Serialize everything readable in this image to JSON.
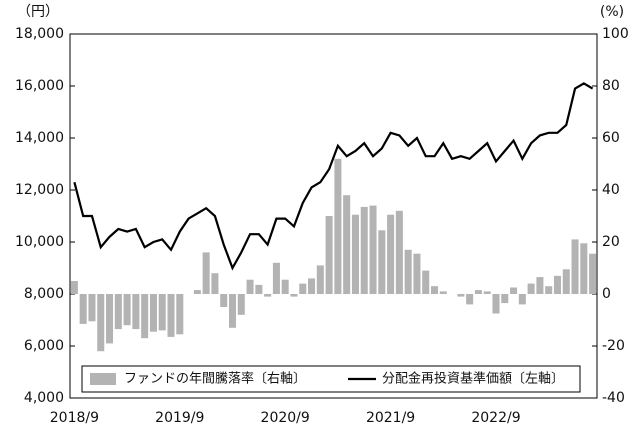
{
  "chart_data": {
    "type": "combo",
    "y_unit": "（円）",
    "y2_unit": "(%)",
    "categories": [
      "2018/9",
      null,
      null,
      null,
      null,
      null,
      null,
      null,
      null,
      null,
      null,
      null,
      "2019/9",
      null,
      null,
      null,
      null,
      null,
      null,
      null,
      null,
      null,
      null,
      null,
      "2020/9",
      null,
      null,
      null,
      null,
      null,
      null,
      null,
      null,
      null,
      null,
      null,
      "2021/9",
      null,
      null,
      null,
      null,
      null,
      null,
      null,
      null,
      null,
      null,
      null,
      "2022/9",
      null,
      null,
      null,
      null,
      null,
      null,
      null,
      null,
      null,
      null,
      null
    ],
    "series": [
      {
        "name": "ファンドの年間騰落率〔右軸〕",
        "type": "bar",
        "axis": "y2",
        "color": "#b3b3b3",
        "values": [
          5,
          -11.5,
          -10.5,
          -22,
          -19,
          -13.5,
          -12,
          -13.5,
          -17,
          -14.5,
          -14,
          -16.5,
          -15.5,
          0,
          1.5,
          16,
          8,
          -5,
          -13,
          -8,
          5.5,
          3.5,
          -1,
          12,
          5.5,
          -1,
          4,
          6,
          11,
          30,
          52,
          38,
          30.5,
          33.5,
          34,
          24.5,
          30.5,
          32,
          17,
          15.5,
          9,
          3,
          1,
          0,
          -1,
          -4,
          1.5,
          1,
          -7.5,
          -3.5,
          2.5,
          -4,
          4,
          6.5,
          3,
          7,
          9.5,
          21,
          19.5,
          15.5
        ]
      },
      {
        "name": "分配金再投資基準価額〔左軸〕",
        "type": "line",
        "color": "#000000",
        "values": [
          12300,
          11000,
          11000,
          9800,
          10200,
          10500,
          10400,
          10500,
          9800,
          10000,
          10100,
          9700,
          10400,
          10900,
          11100,
          11300,
          11000,
          9900,
          9000,
          9600,
          10300,
          10300,
          9900,
          10900,
          10900,
          10600,
          11500,
          12100,
          12300,
          12800,
          13700,
          13300,
          13500,
          13800,
          13300,
          13600,
          14200,
          14100,
          13700,
          14000,
          13300,
          13300,
          13800,
          13200,
          13300,
          13200,
          13500,
          13800,
          13100,
          13500,
          13900,
          13200,
          13800,
          14100,
          14200,
          14200,
          14500,
          15900,
          16100,
          15900
        ]
      }
    ],
    "ylim": [
      4000,
      18000
    ],
    "yticks": [
      {
        "value": 4000,
        "label": "4,000"
      },
      {
        "value": 6000,
        "label": "6,000"
      },
      {
        "value": 8000,
        "label": "8,000"
      },
      {
        "value": 10000,
        "label": "10,000"
      },
      {
        "value": 12000,
        "label": "12,000"
      },
      {
        "value": 14000,
        "label": "14,000"
      },
      {
        "value": 16000,
        "label": "16,000"
      },
      {
        "value": 18000,
        "label": "18,000"
      }
    ],
    "y2lim": [
      -40,
      100
    ],
    "y2ticks": [
      -40,
      -20,
      0,
      20,
      40,
      60,
      80,
      100
    ],
    "legend": "bottom",
    "grid": false
  }
}
